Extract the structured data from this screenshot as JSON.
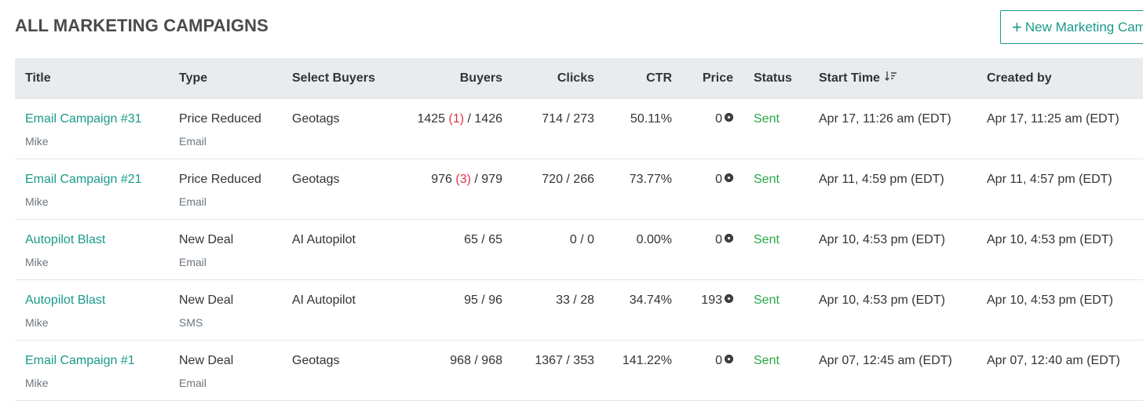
{
  "header": {
    "title": "ALL MARKETING CAMPAIGNS",
    "new_button_label": "New Marketing Campaign"
  },
  "table": {
    "columns": {
      "title": "Title",
      "type": "Type",
      "select_buyers": "Select Buyers",
      "buyers": "Buyers",
      "clicks": "Clicks",
      "ctr": "CTR",
      "price": "Price",
      "status": "Status",
      "start_time": "Start Time",
      "created_by": "Created by"
    },
    "rows": [
      {
        "title": "Email Campaign #31",
        "author": "Mike",
        "type": "Price Reduced",
        "channel": "Email",
        "select_buyers": "Geotags",
        "buyers_a": "1425",
        "buyers_err": "(1)",
        "buyers_b": "/ 1426",
        "clicks": "714 / 273",
        "ctr": "50.11%",
        "price": "0",
        "status": "Sent",
        "start_time": "Apr 17, 11:26 am (EDT)",
        "created_by": "Apr 17, 11:25 am (EDT)"
      },
      {
        "title": "Email Campaign #21",
        "author": "Mike",
        "type": "Price Reduced",
        "channel": "Email",
        "select_buyers": "Geotags",
        "buyers_a": "976",
        "buyers_err": "(3)",
        "buyers_b": "/ 979",
        "clicks": "720 / 266",
        "ctr": "73.77%",
        "price": "0",
        "status": "Sent",
        "start_time": "Apr 11, 4:59 pm (EDT)",
        "created_by": "Apr 11, 4:57 pm (EDT)"
      },
      {
        "title": "Autopilot Blast",
        "author": "Mike",
        "type": "New Deal",
        "channel": "Email",
        "select_buyers": "AI Autopilot",
        "buyers_a": "65 / 65",
        "buyers_err": "",
        "buyers_b": "",
        "clicks": "0 / 0",
        "ctr": "0.00%",
        "price": "0",
        "status": "Sent",
        "start_time": "Apr 10, 4:53 pm (EDT)",
        "created_by": "Apr 10, 4:53 pm (EDT)"
      },
      {
        "title": "Autopilot Blast",
        "author": "Mike",
        "type": "New Deal",
        "channel": "SMS",
        "select_buyers": "AI Autopilot",
        "buyers_a": "95 / 96",
        "buyers_err": "",
        "buyers_b": "",
        "clicks": "33 / 28",
        "ctr": "34.74%",
        "price": "193",
        "status": "Sent",
        "start_time": "Apr 10, 4:53 pm (EDT)",
        "created_by": "Apr 10, 4:53 pm (EDT)"
      },
      {
        "title": "Email Campaign #1",
        "author": "Mike",
        "type": "New Deal",
        "channel": "Email",
        "select_buyers": "Geotags",
        "buyers_a": "968 / 968",
        "buyers_err": "",
        "buyers_b": "",
        "clicks": "1367 / 353",
        "ctr": "141.22%",
        "price": "0",
        "status": "Sent",
        "start_time": "Apr 07, 12:45 am (EDT)",
        "created_by": "Apr 07, 12:40 am (EDT)"
      }
    ]
  },
  "icons": {
    "plus": "plus-icon",
    "sort": "sort-descending-icon",
    "coin": "coin-icon"
  },
  "colors": {
    "accent": "#1a9a8a",
    "status_sent": "#28a745",
    "error": "#dc3545",
    "header_bg": "#e9ecef"
  }
}
